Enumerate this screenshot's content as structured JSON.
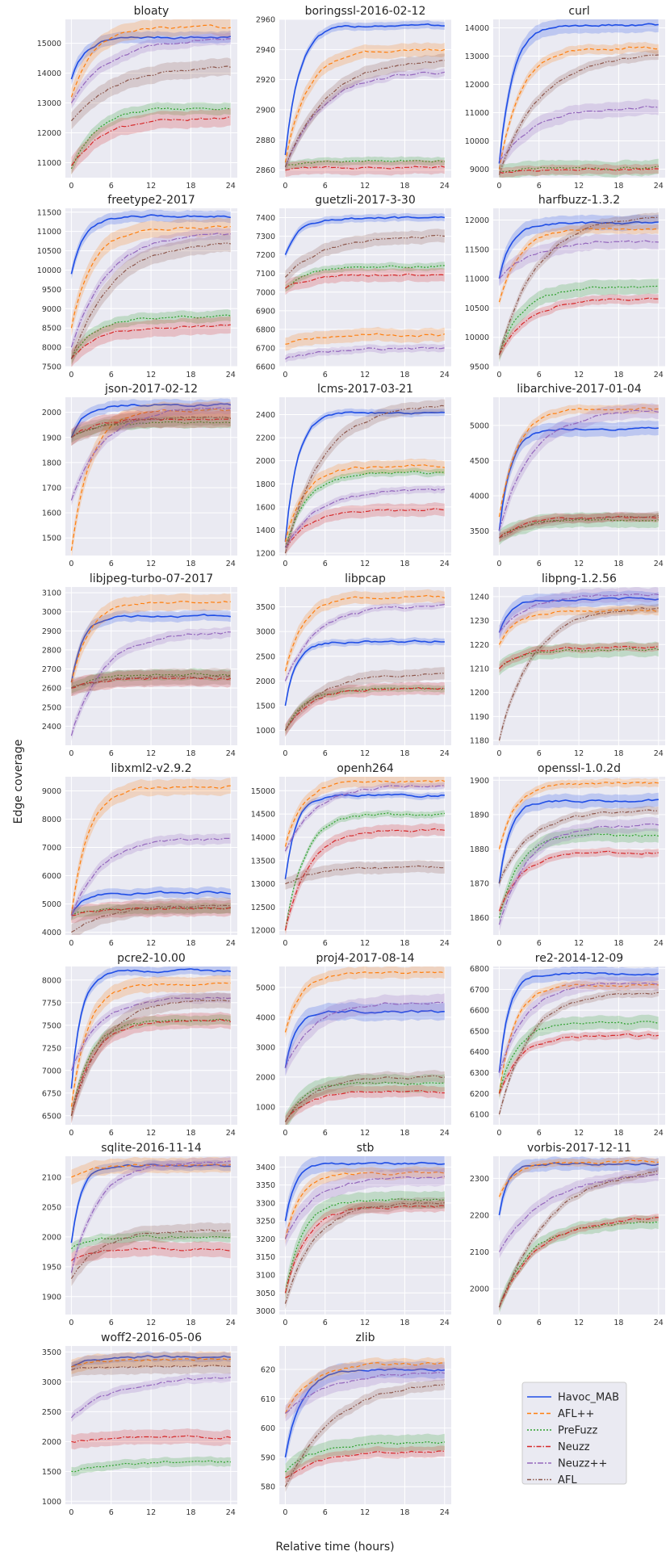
{
  "chart_data": {
    "type": "line",
    "xlabel": "Relative time (hours)",
    "ylabel": "Edge coverage",
    "xticks": [
      0,
      6,
      12,
      18,
      24
    ],
    "series_names": [
      "Havoc_MAB",
      "AFL++",
      "PreFuzz",
      "Neuzz",
      "Neuzz++",
      "AFL"
    ],
    "series_colors": [
      "#1f4ee6",
      "#ff7f0e",
      "#2ca02c",
      "#d62728",
      "#9467bd",
      "#8c564b"
    ],
    "legend_position": "bottom-right",
    "subplots": [
      {
        "title": "bloaty",
        "ylim": [
          10500,
          15800
        ],
        "yticks": [
          11000,
          12000,
          13000,
          14000,
          15000
        ],
        "final": [
          15200,
          15550,
          12850,
          12500,
          15150,
          14200
        ],
        "start": [
          13800,
          13200,
          10800,
          10900,
          13000,
          12400
        ]
      },
      {
        "title": "boringssl-2016-02-12",
        "ylim": [
          2855,
          2960
        ],
        "yticks": [
          2860,
          2880,
          2900,
          2920,
          2940,
          2960
        ],
        "final": [
          2956,
          2940,
          2866,
          2862,
          2925,
          2933
        ],
        "start": [
          2870,
          2865,
          2863,
          2860,
          2862,
          2862
        ]
      },
      {
        "title": "curl",
        "ylim": [
          8700,
          14300
        ],
        "yticks": [
          9000,
          10000,
          11000,
          12000,
          13000,
          14000
        ],
        "final": [
          14100,
          13300,
          9050,
          9000,
          11200,
          13000
        ],
        "start": [
          9200,
          9000,
          8900,
          8900,
          9300,
          8800
        ]
      },
      {
        "title": "freetype2-2017",
        "ylim": [
          7500,
          11600
        ],
        "yticks": [
          7500,
          8000,
          8500,
          9000,
          9500,
          10000,
          10500,
          11000,
          11500
        ],
        "final": [
          11400,
          11100,
          8800,
          8550,
          10950,
          10700
        ],
        "start": [
          9900,
          8500,
          7700,
          7700,
          8000,
          7700
        ]
      },
      {
        "title": "guetzli-2017-3-30",
        "ylim": [
          6600,
          7450
        ],
        "yticks": [
          6600,
          6700,
          6800,
          6900,
          7000,
          7100,
          7200,
          7300,
          7400
        ],
        "final": [
          7395,
          6770,
          7140,
          7095,
          6700,
          7300
        ],
        "start": [
          7200,
          6720,
          7020,
          7020,
          6640,
          7080
        ]
      },
      {
        "title": "harfbuzz-1.3.2",
        "ylim": [
          9500,
          12200
        ],
        "yticks": [
          9500,
          10000,
          10500,
          11000,
          11500,
          12000
        ],
        "final": [
          11950,
          11850,
          10850,
          10650,
          11650,
          12050
        ],
        "start": [
          11000,
          10600,
          9700,
          9700,
          11000,
          9700
        ]
      },
      {
        "title": "json-2017-02-12",
        "ylim": [
          1430,
          2060
        ],
        "yticks": [
          1500,
          1600,
          1700,
          1800,
          1900,
          2000
        ],
        "final": [
          2030,
          2010,
          1960,
          1975,
          2020,
          1980
        ],
        "start": [
          1900,
          1450,
          1900,
          1900,
          1650,
          1900
        ]
      },
      {
        "title": "lcms-2017-03-21",
        "ylim": [
          1180,
          2550
        ],
        "yticks": [
          1200,
          1400,
          1600,
          1800,
          2000,
          2200,
          2400
        ],
        "final": [
          2420,
          1950,
          1900,
          1580,
          1750,
          2470
        ],
        "start": [
          1300,
          1300,
          1250,
          1250,
          1250,
          1200
        ]
      },
      {
        "title": "libarchive-2017-01-04",
        "ylim": [
          3150,
          5400
        ],
        "yticks": [
          3500,
          4000,
          4500,
          5000
        ],
        "final": [
          4950,
          5250,
          3650,
          3700,
          5200,
          3700
        ],
        "start": [
          3500,
          3700,
          3400,
          3400,
          3500,
          3400
        ]
      },
      {
        "title": "libjpeg-turbo-07-2017",
        "ylim": [
          2300,
          3130
        ],
        "yticks": [
          2400,
          2500,
          2600,
          2700,
          2800,
          2900,
          3000,
          3100
        ],
        "final": [
          2980,
          3050,
          2670,
          2650,
          2890,
          2660
        ],
        "start": [
          2630,
          2630,
          2600,
          2600,
          2350,
          2600
        ]
      },
      {
        "title": "libpcap",
        "ylim": [
          700,
          3900
        ],
        "yticks": [
          1000,
          1500,
          2000,
          2500,
          3000,
          3500
        ],
        "final": [
          2800,
          3700,
          1850,
          1850,
          3520,
          2150
        ],
        "start": [
          1500,
          2200,
          1000,
          1000,
          2000,
          1000
        ]
      },
      {
        "title": "libpng-1.2.56",
        "ylim": [
          1178,
          1244
        ],
        "yticks": [
          1180,
          1190,
          1200,
          1210,
          1220,
          1230,
          1240
        ],
        "final": [
          1239,
          1234,
          1218,
          1219,
          1241,
          1235
        ],
        "start": [
          1225,
          1220,
          1210,
          1210,
          1225,
          1180
        ]
      },
      {
        "title": "libxml2-v2.9.2",
        "ylim": [
          3900,
          9500
        ],
        "yticks": [
          4000,
          5000,
          6000,
          7000,
          8000,
          9000
        ],
        "final": [
          5400,
          9150,
          4850,
          4850,
          7300,
          4950
        ],
        "start": [
          4600,
          4600,
          4600,
          4600,
          4600,
          4000
        ]
      },
      {
        "title": "openh264",
        "ylim": [
          11900,
          15300
        ],
        "yticks": [
          12000,
          12500,
          13000,
          13500,
          14000,
          14500,
          15000
        ],
        "final": [
          14900,
          15200,
          14500,
          14150,
          15100,
          13350
        ],
        "start": [
          13100,
          13800,
          12000,
          12000,
          13700,
          13000
        ]
      },
      {
        "title": "openssl-1.0.2d",
        "ylim": [
          1855,
          1901
        ],
        "yticks": [
          1860,
          1870,
          1880,
          1890,
          1900
        ],
        "final": [
          1894,
          1899,
          1884,
          1879,
          1887,
          1891
        ],
        "start": [
          1870,
          1880,
          1860,
          1862,
          1858,
          1870
        ]
      },
      {
        "title": "pcre2-10.00",
        "ylim": [
          6400,
          8150
        ],
        "yticks": [
          6500,
          6750,
          7000,
          7250,
          7500,
          7750,
          8000
        ],
        "final": [
          8100,
          7950,
          7550,
          7550,
          7800,
          7780
        ],
        "start": [
          6800,
          6600,
          6500,
          6500,
          7000,
          6500
        ]
      },
      {
        "title": "proj4-2017-08-14",
        "ylim": [
          400,
          5700
        ],
        "yticks": [
          1000,
          2000,
          3000,
          4000,
          5000
        ],
        "final": [
          4200,
          5500,
          1800,
          1500,
          4500,
          2000
        ],
        "start": [
          2300,
          3500,
          500,
          500,
          2300,
          500
        ]
      },
      {
        "title": "re2-2014-12-09",
        "ylim": [
          6050,
          6810
        ],
        "yticks": [
          6100,
          6200,
          6300,
          6400,
          6500,
          6600,
          6700,
          6800
        ],
        "final": [
          6775,
          6720,
          6540,
          6480,
          6730,
          6680
        ],
        "start": [
          6300,
          6200,
          6200,
          6200,
          6300,
          6100
        ]
      },
      {
        "title": "sqlite-2016-11-14",
        "ylim": [
          1870,
          2135
        ],
        "yticks": [
          1900,
          1950,
          2000,
          2050,
          2100
        ],
        "final": [
          2120,
          2120,
          2000,
          1980,
          2125,
          2010
        ],
        "start": [
          1990,
          2100,
          1980,
          1960,
          1940,
          1930
        ]
      },
      {
        "title": "stb",
        "ylim": [
          2990,
          3430
        ],
        "yticks": [
          3000,
          3050,
          3100,
          3150,
          3200,
          3250,
          3300,
          3350,
          3400
        ],
        "final": [
          3410,
          3385,
          3310,
          3290,
          3370,
          3300
        ],
        "start": [
          3250,
          3200,
          3050,
          3050,
          3200,
          3020
        ]
      },
      {
        "title": "vorbis-2017-12-11",
        "ylim": [
          1930,
          2360
        ],
        "yticks": [
          2000,
          2100,
          2200,
          2300
        ],
        "final": [
          2340,
          2345,
          2180,
          2190,
          2310,
          2320
        ],
        "start": [
          2200,
          2250,
          1950,
          1950,
          2100,
          1950
        ]
      },
      {
        "title": "woff2-2016-05-06",
        "ylim": [
          950,
          3600
        ],
        "yticks": [
          1000,
          1500,
          2000,
          2500,
          3000,
          3500
        ],
        "final": [
          3420,
          3380,
          1650,
          2080,
          3070,
          3270
        ],
        "start": [
          3250,
          3250,
          1500,
          2000,
          2400,
          3200
        ]
      },
      {
        "title": "zlib",
        "ylim": [
          574,
          628
        ],
        "yticks": [
          580,
          590,
          600,
          610,
          620
        ],
        "final": [
          620,
          622,
          595,
          592,
          619,
          615
        ],
        "start": [
          590,
          605,
          585,
          583,
          605,
          580
        ]
      }
    ]
  }
}
